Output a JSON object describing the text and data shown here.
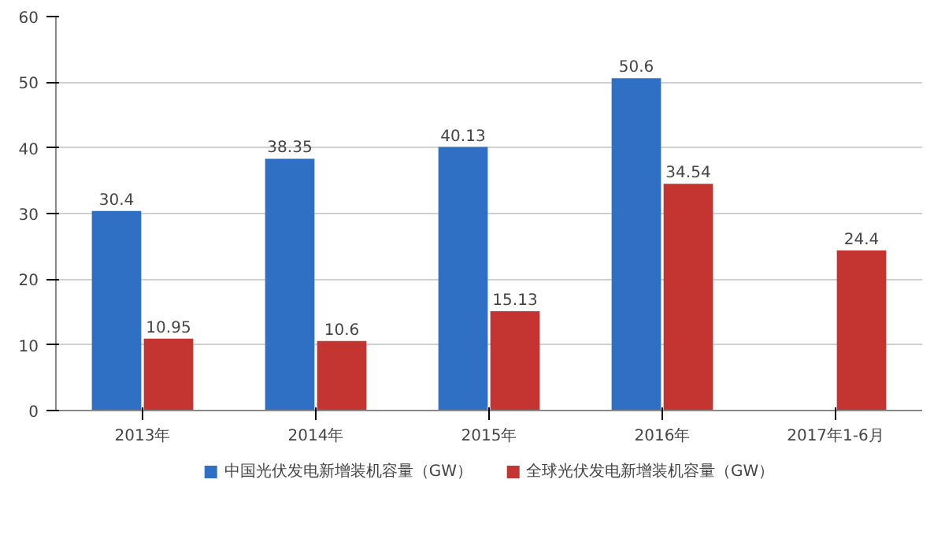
{
  "chart_data": {
    "type": "bar",
    "categories": [
      "2013年",
      "2014年",
      "2015年",
      "2016年",
      "2017年1-6月"
    ],
    "series": [
      {
        "name": "中国光伏发电新增装机容量（GW）",
        "color": "#2f6fc4",
        "values": [
          30.4,
          38.35,
          40.13,
          50.6,
          null
        ]
      },
      {
        "name": "全球光伏发电新增装机容量（GW）",
        "color": "#c43430",
        "values": [
          10.95,
          10.6,
          15.13,
          34.54,
          24.4
        ]
      }
    ],
    "ylim": [
      0,
      60
    ],
    "yticks": [
      0,
      10,
      20,
      30,
      40,
      50,
      60
    ],
    "grid": "y",
    "legend": "bottom",
    "data_labels": true
  }
}
